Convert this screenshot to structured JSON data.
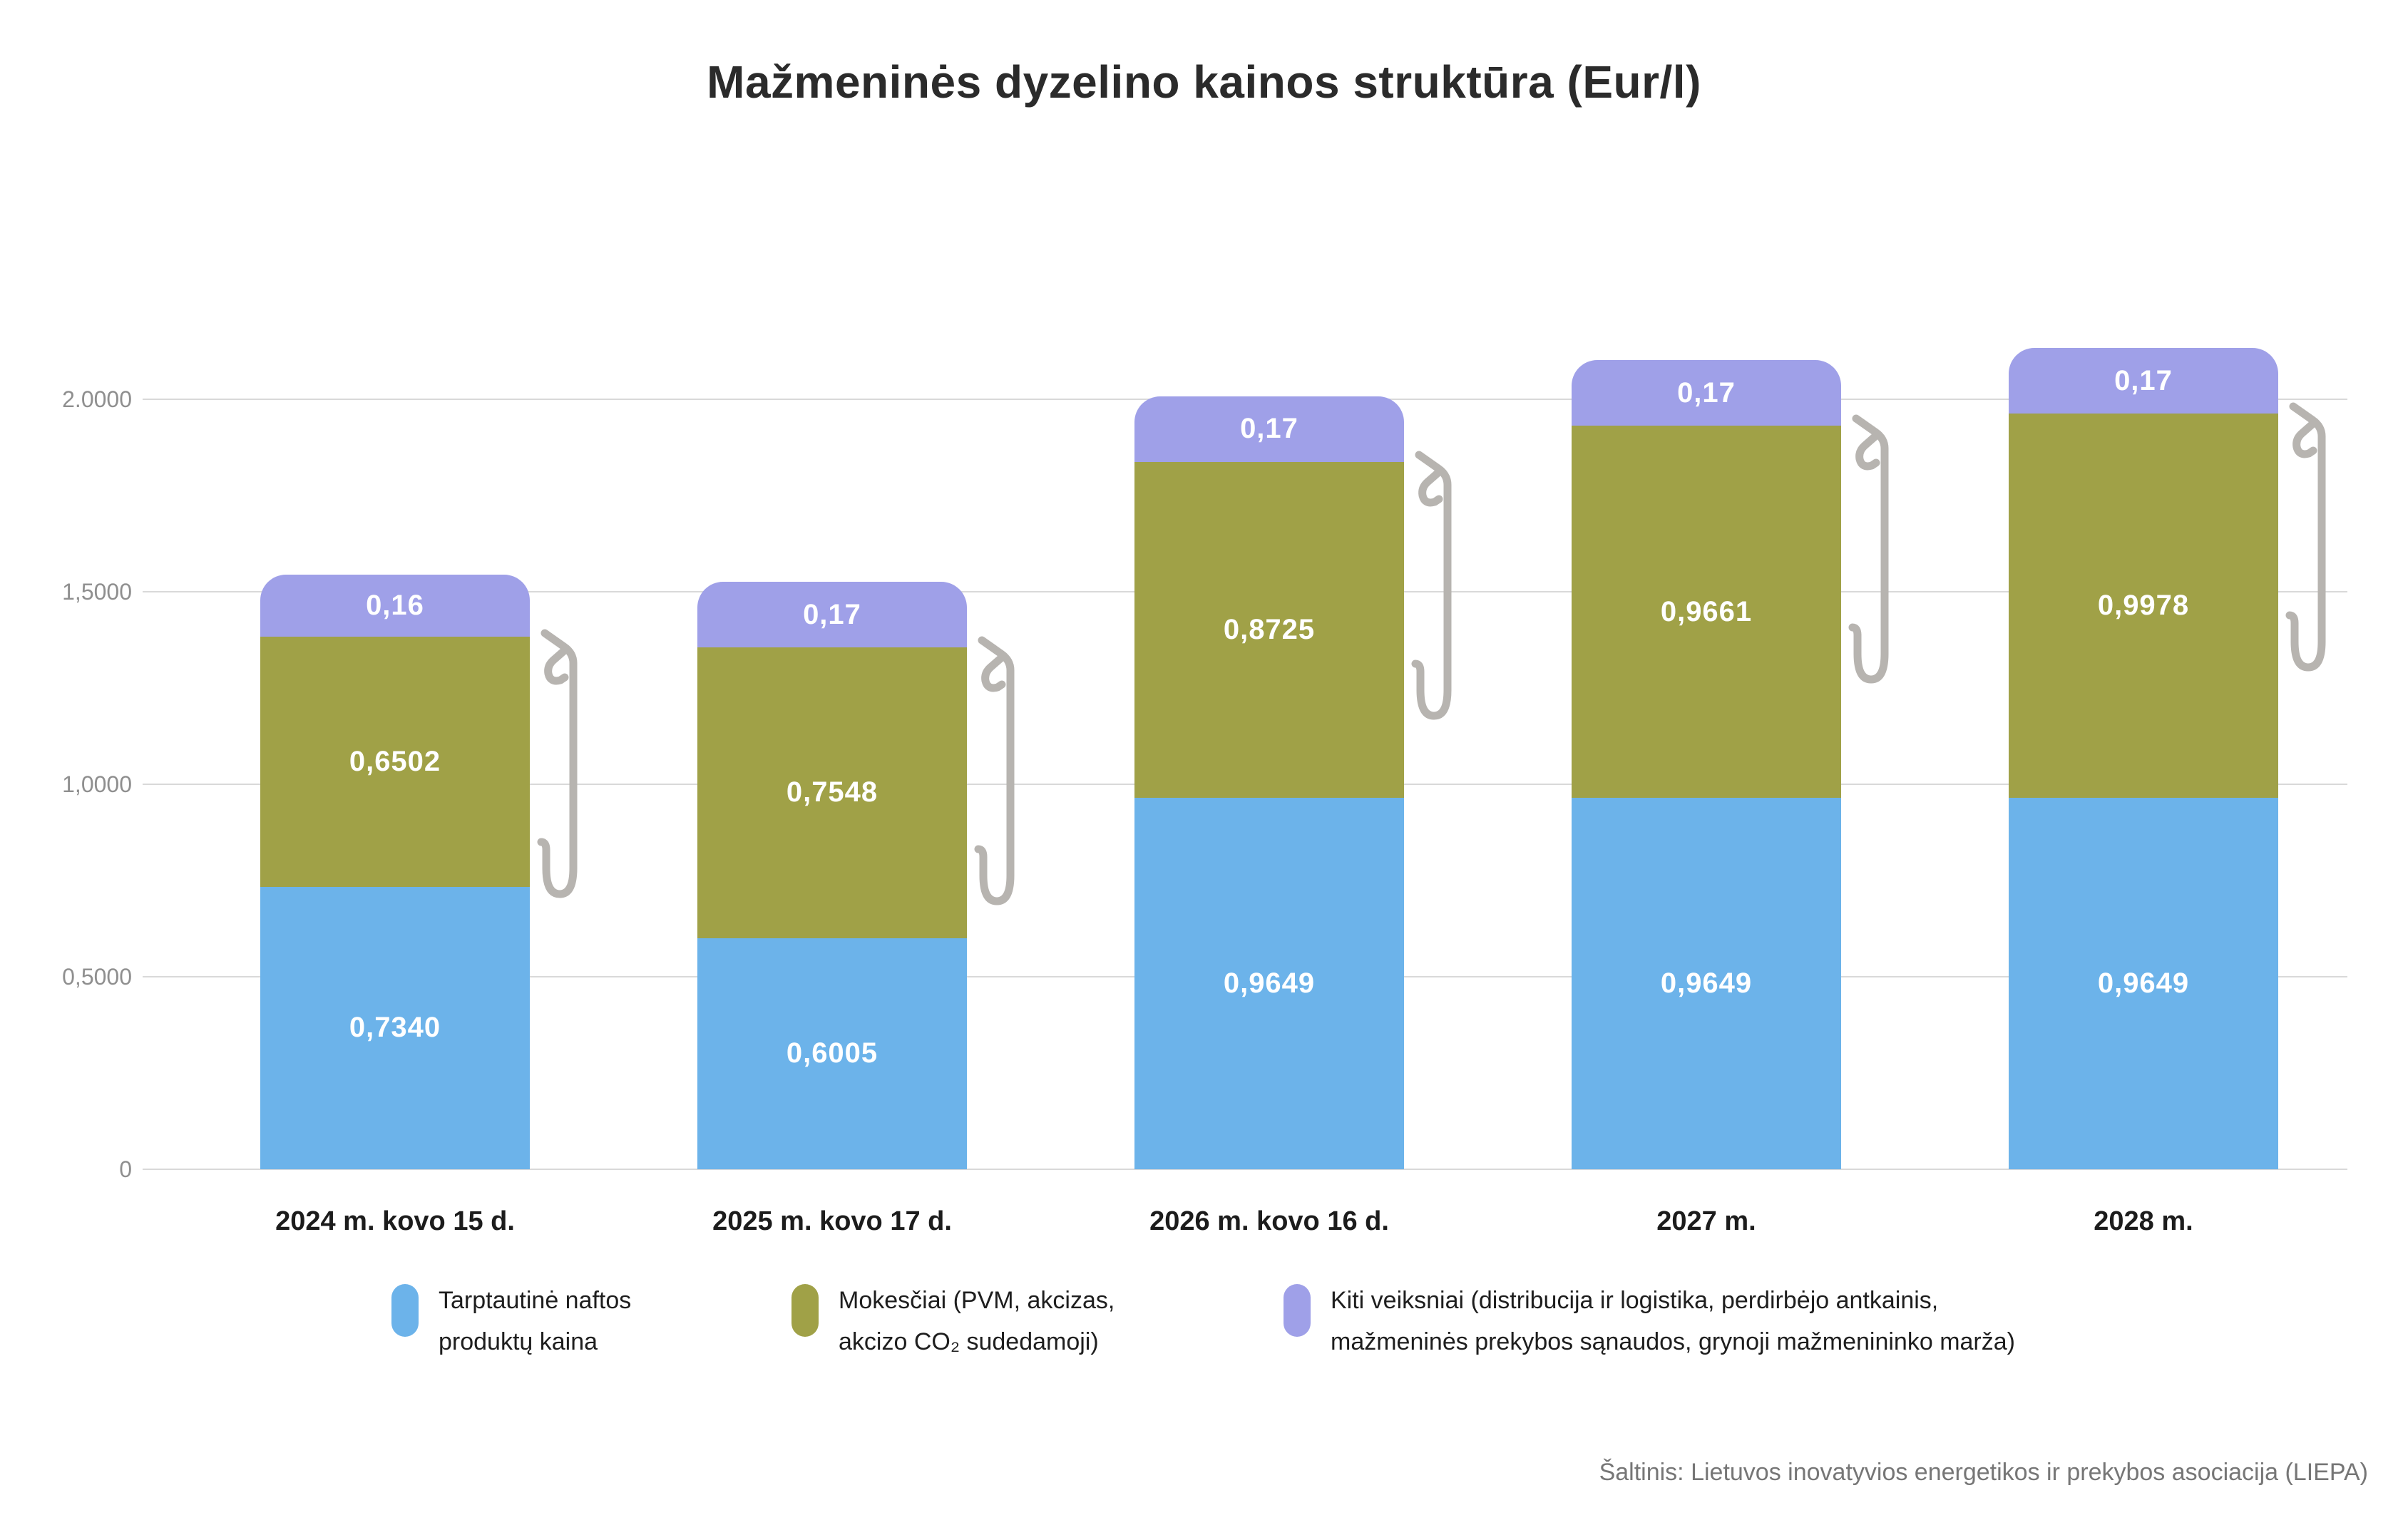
{
  "title": "Mažmeninės dyzelino kainos struktūra (Eur/l)",
  "source": "Šaltinis: Lietuvos inovatyvios energetikos ir prekybos asociacija (LIEPA)",
  "y_axis": {
    "ticks": [
      "2.0000",
      "1,5000",
      "1,0000",
      "0,5000",
      "0"
    ]
  },
  "legend": {
    "items": [
      {
        "line1": "Tarptautinė naftos",
        "line2": "produktų kaina",
        "color": "#6cb3ea"
      },
      {
        "line1": "Mokesčiai (PVM, akcizas,",
        "line2": "akcizo CO₂ sudedamoji)",
        "color": "#a0a147"
      },
      {
        "line1": "Kiti veiksniai (distribucija ir logistika, perdirbėjo antkainis,",
        "line2": "mažmeninės prekybos sąnaudos, grynoji mažmenininko marža)",
        "color": "#9fa0e8"
      }
    ]
  },
  "chart_data": {
    "type": "bar",
    "stacked": true,
    "title": "Mažmeninės dyzelino kainos struktūra (Eur/l)",
    "xlabel": "",
    "ylabel": "",
    "ylim": [
      0,
      2.0
    ],
    "ytick_values": [
      0,
      0.5,
      1.0,
      1.5,
      2.0
    ],
    "grid": "horizontal",
    "legend_position": "bottom",
    "categories": [
      "2024 m. kovo 15 d.",
      "2025 m. kovo 17 d.",
      "2026 m. kovo 16 d.",
      "2027 m.",
      "2028 m."
    ],
    "series": [
      {
        "name": "Tarptautinė naftos produktų kaina",
        "color": "#6cb3ea",
        "values": [
          0.734,
          0.6005,
          0.9649,
          0.9649,
          0.9649
        ],
        "labels": [
          "0,7340",
          "0,6005",
          "0,9649",
          "0,9649",
          "0,9649"
        ]
      },
      {
        "name": "Mokesčiai (PVM, akcizas, akcizo CO₂ sudedamoji)",
        "color": "#a0a147",
        "values": [
          0.6502,
          0.7548,
          0.8725,
          0.9661,
          0.9978
        ],
        "labels": [
          "0,6502",
          "0,7548",
          "0,8725",
          "0,9661",
          "0,9978"
        ]
      },
      {
        "name": "Kiti veiksniai (distribucija ir logistika, perdirbėjo antkainis, mažmeninės prekybos sąnaudos, grynoji mažmenininko marža)",
        "color": "#9fa0e8",
        "values": [
          0.16,
          0.17,
          0.17,
          0.17,
          0.17
        ],
        "labels": [
          "0,16",
          "0,17",
          "0,17",
          "0,17",
          "0,17"
        ]
      }
    ],
    "totals": [
      1.5442,
      1.5253,
      2.0074,
      2.101,
      2.1327
    ]
  }
}
